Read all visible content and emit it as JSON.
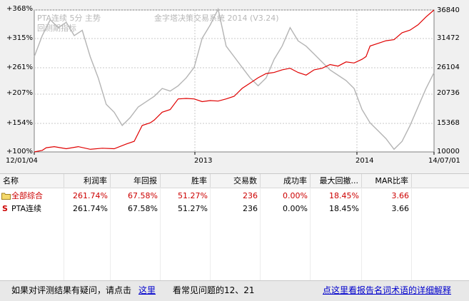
{
  "chart": {
    "overlay": {
      "series_label": "PTA连续 5分 主势",
      "system_title": "金字塔决策交易系统 2014 (V3.24)",
      "line2": "回测期指标"
    },
    "y_left_ticks": [
      "+368%",
      "+315%",
      "+261%",
      "+207%",
      "+154%",
      "+100%"
    ],
    "y_right_ticks": [
      "36840",
      "31472",
      "26104",
      "20736",
      "15368",
      "10000"
    ],
    "x_ticks": [
      "12/01/04",
      "2013",
      "2014",
      "14/07/01"
    ],
    "colors": {
      "equity": "#e00000",
      "price": "#b4b4b4",
      "grid": "#c8c8c8"
    }
  },
  "chart_data": {
    "type": "line",
    "x": [
      "12/01/04",
      "2013",
      "2014",
      "14/07/01"
    ],
    "ylim_left": [
      100,
      368
    ],
    "ylim_right": [
      10000,
      36840
    ],
    "series": [
      {
        "name": "",
        "axis": "left",
        "points": [
          [
            0,
            100
          ],
          [
            0.02,
            103
          ],
          [
            0.03,
            108
          ],
          [
            0.05,
            110
          ],
          [
            0.08,
            106
          ],
          [
            0.11,
            110
          ],
          [
            0.14,
            105
          ],
          [
            0.17,
            107
          ],
          [
            0.2,
            106
          ],
          [
            0.23,
            115
          ],
          [
            0.25,
            120
          ],
          [
            0.27,
            150
          ],
          [
            0.29,
            155
          ],
          [
            0.3,
            160
          ],
          [
            0.32,
            175
          ],
          [
            0.34,
            180
          ],
          [
            0.36,
            200
          ],
          [
            0.38,
            201
          ],
          [
            0.4,
            200
          ],
          [
            0.42,
            195
          ],
          [
            0.44,
            197
          ],
          [
            0.46,
            196
          ],
          [
            0.48,
            200
          ],
          [
            0.5,
            205
          ],
          [
            0.52,
            220
          ],
          [
            0.54,
            230
          ],
          [
            0.56,
            240
          ],
          [
            0.58,
            248
          ],
          [
            0.6,
            250
          ],
          [
            0.62,
            255
          ],
          [
            0.64,
            258
          ],
          [
            0.66,
            250
          ],
          [
            0.68,
            245
          ],
          [
            0.7,
            255
          ],
          [
            0.72,
            258
          ],
          [
            0.74,
            265
          ],
          [
            0.76,
            262
          ],
          [
            0.78,
            270
          ],
          [
            0.8,
            268
          ],
          [
            0.82,
            275
          ],
          [
            0.83,
            280
          ],
          [
            0.84,
            300
          ],
          [
            0.86,
            305
          ],
          [
            0.88,
            310
          ],
          [
            0.9,
            312
          ],
          [
            0.92,
            325
          ],
          [
            0.94,
            330
          ],
          [
            0.96,
            340
          ],
          [
            0.98,
            355
          ],
          [
            1.0,
            368
          ]
        ]
      },
      {
        "name": "",
        "axis": "right",
        "points": [
          [
            0,
            28000
          ],
          [
            0.02,
            32000
          ],
          [
            0.04,
            35000
          ],
          [
            0.06,
            33500
          ],
          [
            0.08,
            34500
          ],
          [
            0.1,
            32000
          ],
          [
            0.12,
            33000
          ],
          [
            0.14,
            28000
          ],
          [
            0.16,
            24000
          ],
          [
            0.18,
            19000
          ],
          [
            0.2,
            17500
          ],
          [
            0.22,
            15000
          ],
          [
            0.24,
            16500
          ],
          [
            0.26,
            18500
          ],
          [
            0.28,
            19500
          ],
          [
            0.3,
            20500
          ],
          [
            0.32,
            22000
          ],
          [
            0.34,
            21500
          ],
          [
            0.36,
            22500
          ],
          [
            0.38,
            24000
          ],
          [
            0.4,
            26000
          ],
          [
            0.42,
            31500
          ],
          [
            0.44,
            34000
          ],
          [
            0.46,
            37000
          ],
          [
            0.48,
            30000
          ],
          [
            0.5,
            28000
          ],
          [
            0.52,
            26000
          ],
          [
            0.54,
            24000
          ],
          [
            0.56,
            22500
          ],
          [
            0.58,
            24000
          ],
          [
            0.6,
            27500
          ],
          [
            0.62,
            30000
          ],
          [
            0.64,
            33500
          ],
          [
            0.66,
            31000
          ],
          [
            0.68,
            30000
          ],
          [
            0.7,
            28500
          ],
          [
            0.72,
            27000
          ],
          [
            0.74,
            25500
          ],
          [
            0.76,
            24500
          ],
          [
            0.78,
            23500
          ],
          [
            0.8,
            22000
          ],
          [
            0.82,
            18000
          ],
          [
            0.84,
            15500
          ],
          [
            0.86,
            14000
          ],
          [
            0.88,
            12500
          ],
          [
            0.9,
            10500
          ],
          [
            0.92,
            12000
          ],
          [
            0.94,
            15000
          ],
          [
            0.96,
            18500
          ],
          [
            0.98,
            22000
          ],
          [
            1.0,
            25000
          ]
        ]
      }
    ]
  },
  "table": {
    "headers": [
      "名称",
      "利润率",
      "年回报",
      "胜率",
      "交易数",
      "成功率",
      "最大回撤...",
      "MAR比率"
    ],
    "rows": [
      {
        "name": "全部综合",
        "icon": "folder-icon",
        "color": "#cc0000",
        "values": [
          "261.74%",
          "67.58%",
          "51.27%",
          "236",
          "0.00%",
          "18.45%",
          "3.66"
        ]
      },
      {
        "name": "PTA连续",
        "icon": "s-icon",
        "color": "#000000",
        "values": [
          "261.74%",
          "67.58%",
          "51.27%",
          "236",
          "0.00%",
          "18.45%",
          "3.66"
        ]
      }
    ]
  },
  "footer": {
    "question": "如果对评测结果有疑问，请点击",
    "link": "这里",
    "faq": "看常见问题的12、21",
    "glossary": "点这里看报告名词术语的详细解释"
  }
}
